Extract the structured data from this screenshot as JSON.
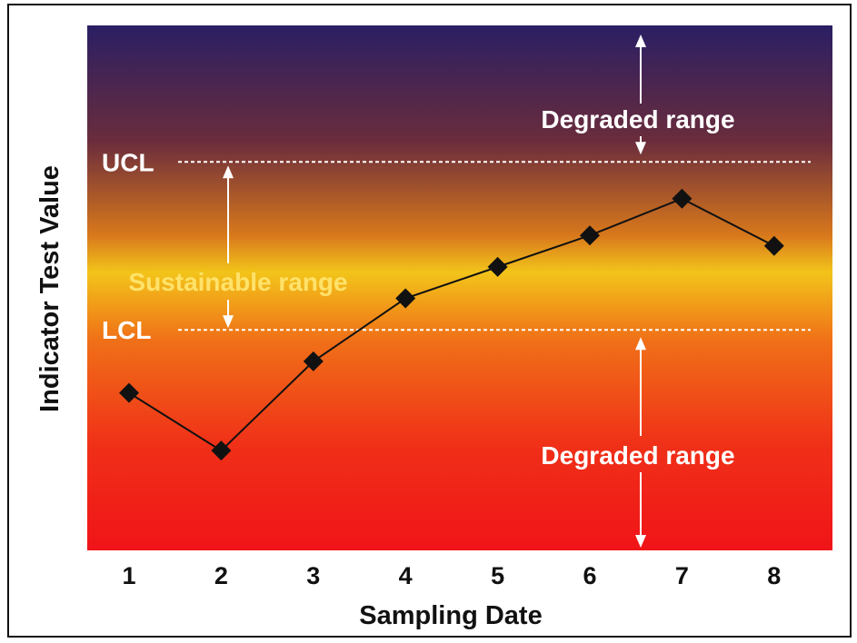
{
  "chart_data": {
    "type": "line",
    "title": "",
    "xlabel": "Sampling Date",
    "ylabel": "Indicator Test Value",
    "categories": [
      "1",
      "2",
      "3",
      "4",
      "5",
      "6",
      "7",
      "8"
    ],
    "series": [
      {
        "values": [
          30,
          19,
          36,
          48,
          54,
          60,
          67,
          58
        ]
      }
    ],
    "ylim": [
      0,
      100
    ],
    "control_limits": {
      "ucl": {
        "label": "UCL",
        "value": 74
      },
      "lcl": {
        "label": "LCL",
        "value": 42
      }
    },
    "annotations": {
      "upper_range": "Degraded range",
      "middle_range": "Sustainable range",
      "lower_range": "Degraded range"
    },
    "background_gradient": [
      "#2a1f64",
      "#6a2c3c",
      "#d8781c",
      "#f2c41a",
      "#f07018",
      "#f03018",
      "#f01418"
    ],
    "line_color": "#111111",
    "marker": "diamond",
    "grid": false
  }
}
